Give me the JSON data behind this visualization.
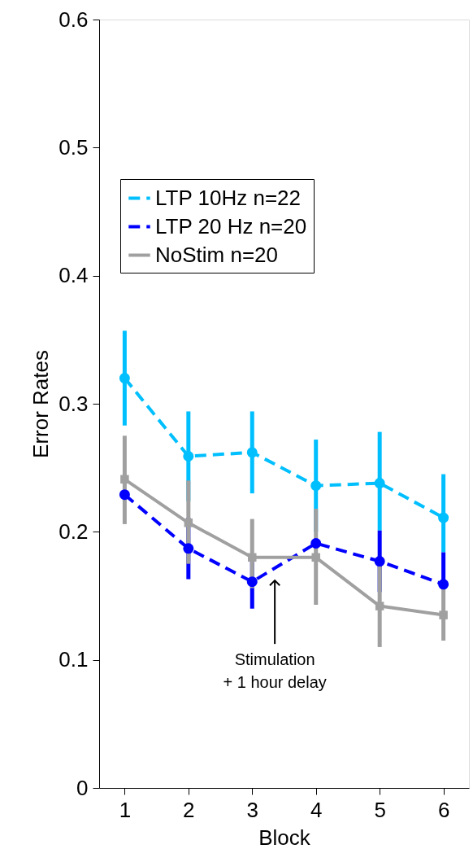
{
  "chart_data": {
    "type": "line",
    "xlabel": "Block",
    "ylabel": "Error Rates",
    "x": [
      1,
      2,
      3,
      4,
      5,
      6
    ],
    "series": [
      {
        "name": "LTP 10Hz n=22",
        "color": "#00bfff",
        "line_style": "dashed",
        "marker": "circle",
        "values": [
          0.32,
          0.259,
          0.262,
          0.236,
          0.238,
          0.211
        ],
        "errors": [
          [
            0.283,
            0.357
          ],
          [
            0.224,
            0.294
          ],
          [
            0.23,
            0.294
          ],
          [
            0.2,
            0.272
          ],
          [
            0.201,
            0.278
          ],
          [
            0.184,
            0.245
          ]
        ]
      },
      {
        "name": "LTP 20 Hz n=20",
        "color": "#0000ff",
        "line_style": "dashed",
        "marker": "circle",
        "values": [
          0.229,
          0.187,
          0.161,
          0.191,
          0.177,
          0.159
        ],
        "errors": [
          null,
          [
            0.163,
            0.211
          ],
          [
            0.14,
            0.182
          ],
          null,
          [
            0.153,
            0.201
          ],
          [
            0.159,
            0.184
          ]
        ]
      },
      {
        "name": "NoStim n=20",
        "color": "#a0a0a0",
        "line_style": "solid",
        "marker": "square",
        "values": [
          0.241,
          0.207,
          0.18,
          0.18,
          0.142,
          0.135
        ],
        "errors": [
          [
            0.206,
            0.275
          ],
          [
            0.175,
            0.24
          ],
          [
            0.156,
            0.21
          ],
          [
            0.143,
            0.218
          ],
          [
            0.11,
            0.175
          ],
          [
            0.115,
            0.156
          ]
        ]
      }
    ],
    "xlim": [
      0.6,
      6.4
    ],
    "xticks": [
      1,
      2,
      3,
      4,
      5,
      6
    ],
    "ylim": [
      0,
      0.6
    ],
    "yticks": [
      0,
      0.1,
      0.2,
      0.3,
      0.4,
      0.5,
      0.6
    ],
    "grid": false,
    "legend": "top",
    "annotations": [
      "Stimulation\n+ 1 hour delay"
    ]
  }
}
